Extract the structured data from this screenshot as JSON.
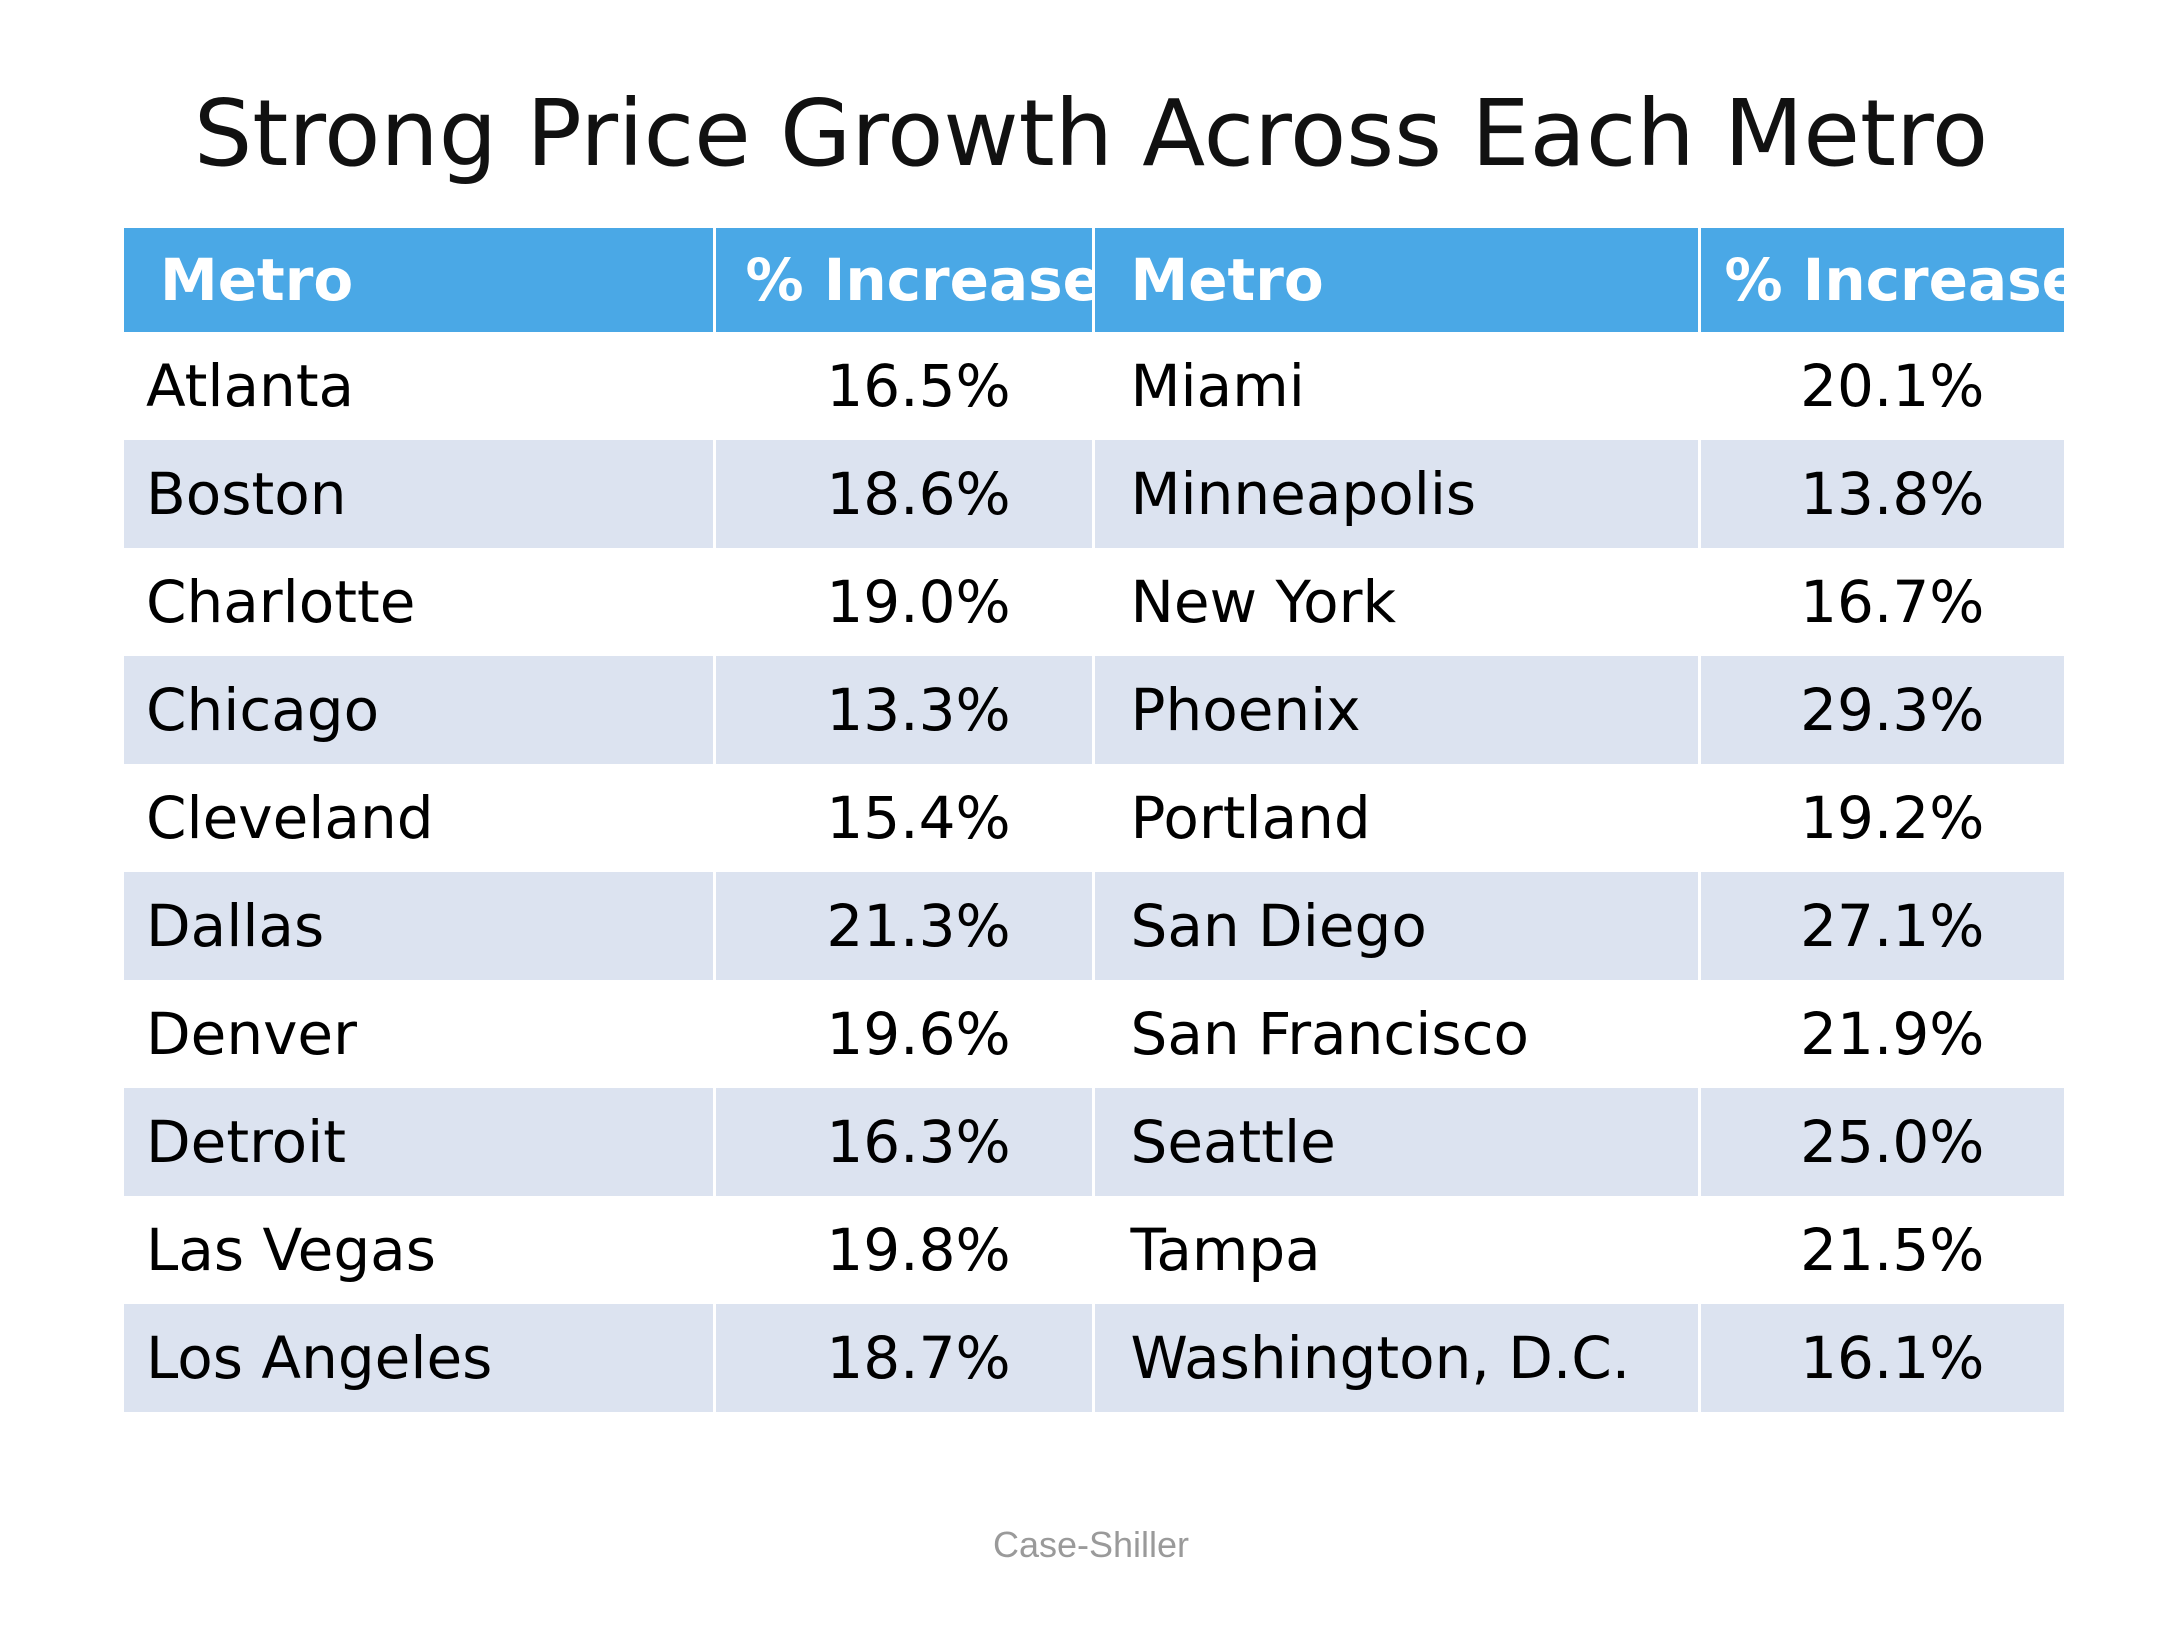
{
  "chart_data": {
    "type": "table",
    "title": "Strong Price Growth Across Each Metro",
    "columns": [
      "Metro",
      "% Increase",
      "Metro",
      "% Increase"
    ],
    "rows": [
      [
        "Atlanta",
        "16.5%",
        "Miami",
        "20.1%"
      ],
      [
        "Boston",
        "18.6%",
        "Minneapolis",
        "13.8%"
      ],
      [
        "Charlotte",
        "19.0%",
        "New York",
        "16.7%"
      ],
      [
        "Chicago",
        "13.3%",
        "Phoenix",
        "29.3%"
      ],
      [
        "Cleveland",
        "15.4%",
        "Portland",
        "19.2%"
      ],
      [
        "Dallas",
        "21.3%",
        "San Diego",
        "27.1%"
      ],
      [
        "Denver",
        "19.6%",
        "San Francisco",
        "21.9%"
      ],
      [
        "Detroit",
        "16.3%",
        "Seattle",
        "25.0%"
      ],
      [
        "Las Vegas",
        "19.8%",
        "Tampa",
        "21.5%"
      ],
      [
        "Los Angeles",
        "18.7%",
        "Washington, D.C.",
        "16.1%"
      ]
    ],
    "source": "Case-Shiller"
  },
  "colors": {
    "header_bg": "#4aa8e6",
    "header_text": "#ffffff",
    "band_row": "#dce3f0",
    "plain_row": "#ffffff",
    "divider": "#555555",
    "source_text": "#9a9a9a"
  }
}
